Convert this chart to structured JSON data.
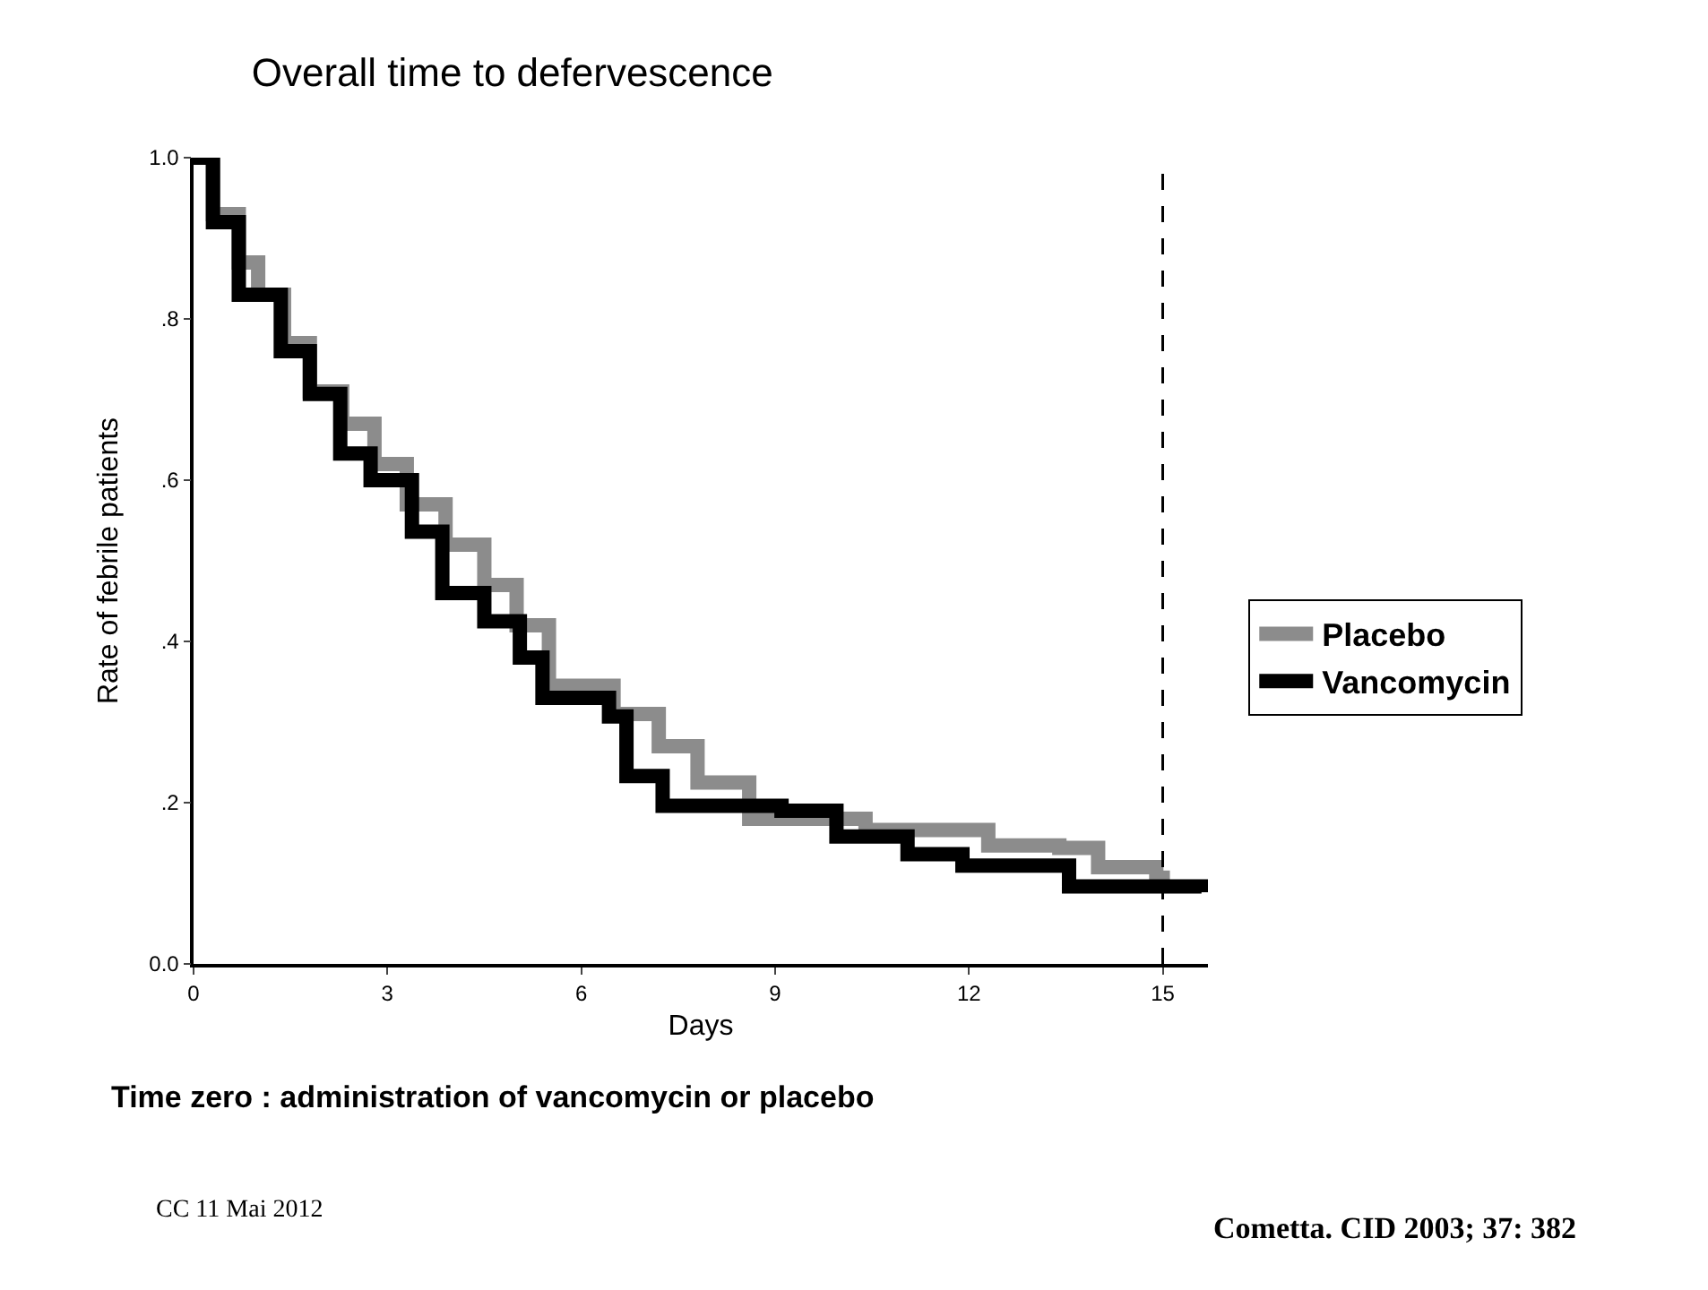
{
  "chart_data": {
    "type": "step",
    "title": "Overall time to defervescence",
    "xlabel": "Days",
    "ylabel": "Rate of febrile patients",
    "xlim": [
      0,
      15.7
    ],
    "xticks": [
      0,
      3,
      6,
      9,
      12,
      15
    ],
    "ylim": [
      0,
      1
    ],
    "yticks": [
      {
        "value": 0,
        "label": "0.0"
      },
      {
        "value": 0.2,
        "label": ".2"
      },
      {
        "value": 0.4,
        "label": ".4"
      },
      {
        "value": 0.6,
        "label": ".6"
      },
      {
        "value": 0.8,
        "label": ".8"
      },
      {
        "value": 1,
        "label": "1.0"
      }
    ],
    "grid": false,
    "legend": "right",
    "line_style": "solid",
    "marker": "none",
    "series": [
      {
        "name": "Placebo",
        "color": "#8c8c8c",
        "x": [
          0,
          0.3,
          0.7,
          1.0,
          1.4,
          1.8,
          2.3,
          2.8,
          3.3,
          3.9,
          4.5,
          5.0,
          5.5,
          6.5,
          7.2,
          7.8,
          8.6,
          10.4,
          12.3,
          13.4,
          14.0,
          14.9,
          15.0
        ],
        "values": [
          1.0,
          0.93,
          0.87,
          0.83,
          0.77,
          0.71,
          0.67,
          0.62,
          0.57,
          0.52,
          0.47,
          0.42,
          0.345,
          0.31,
          0.27,
          0.225,
          0.18,
          0.166,
          0.147,
          0.144,
          0.12,
          0.107,
          0.1
        ]
      },
      {
        "name": "Vancomycin",
        "color": "#000000",
        "x": [
          0,
          0.3,
          0.7,
          1.35,
          1.8,
          2.27,
          2.74,
          3.38,
          3.85,
          4.5,
          5.05,
          5.4,
          6.43,
          6.7,
          7.26,
          9.1,
          9.95,
          11.05,
          11.9,
          13.55,
          15.0,
          15.6
        ],
        "values": [
          1.0,
          0.92,
          0.83,
          0.76,
          0.707,
          0.633,
          0.6,
          0.536,
          0.46,
          0.425,
          0.38,
          0.33,
          0.307,
          0.233,
          0.196,
          0.19,
          0.158,
          0.136,
          0.122,
          0.096,
          0.096,
          0.089
        ]
      }
    ],
    "ref_lines": [
      {
        "axis": "x",
        "value": 15,
        "line_style": "dashed",
        "color": "#000000"
      }
    ],
    "annotations": [
      "Time zero : administration of vancomycin or placebo",
      "CC 11 Mai 2012",
      "Cometta. CID 2003; 37: 382"
    ]
  }
}
